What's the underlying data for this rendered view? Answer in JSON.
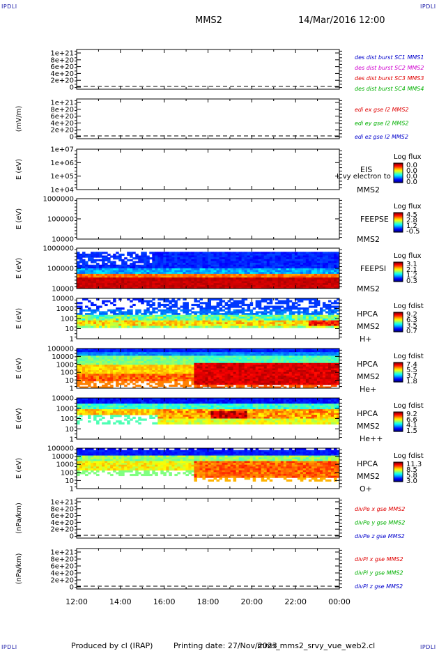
{
  "header": {
    "title": "MMS2",
    "datetime": "14/Mar/2016 12:00",
    "corner_label": "IPDLI"
  },
  "footer": {
    "produced_by": "Produced by cl (IRAP)",
    "printing_date": "Printing date: 27/Nov/2023",
    "filename": "mms_mms2_srvy_vue_web2.cl"
  },
  "chart_data": [
    {
      "type": "line",
      "ylabel": "",
      "yticks": [
        "1e+21",
        "8e+20",
        "6e+20",
        "4e+20",
        "2e+20",
        "0"
      ],
      "series": [
        {
          "name": "des dist burst SC1 MMS1",
          "color": "#0000cc"
        },
        {
          "name": "des dist burst SC2 MMS2",
          "color": "#d000d0"
        },
        {
          "name": "des dist burst SC3 MMS3",
          "color": "#e00000"
        },
        {
          "name": "des dist burst SC4 MMS4",
          "color": "#00b000"
        }
      ]
    },
    {
      "type": "line",
      "ylabel": "(mV/m)",
      "yticks": [
        "1e+21",
        "8e+20",
        "6e+20",
        "4e+20",
        "2e+20",
        "0"
      ],
      "series": [
        {
          "name": "edi ex gse l2 MMS2",
          "color": "#e00000"
        },
        {
          "name": "edi ey gse l2 MMS2",
          "color": "#00b000"
        },
        {
          "name": "edi ez gse l2 MMS2",
          "color": "#0000cc"
        }
      ]
    },
    {
      "type": "heatmap",
      "ylabel": "E (eV)",
      "yticks": [
        "1e+07",
        "1e+06",
        "1e+05",
        "1e+04"
      ],
      "labels": [
        "EIS",
        "MMS2"
      ],
      "overlay": "L vy electron to",
      "colorbar": {
        "title": "Log flux",
        "ticks": [
          "0.0",
          "0.0",
          "0.0",
          "0.0"
        ]
      }
    },
    {
      "type": "heatmap",
      "ylabel": "E (eV)",
      "yticks": [
        "1000000",
        "100000",
        "10000"
      ],
      "labels": [
        "FEEPSE",
        "MMS2"
      ],
      "colorbar": {
        "title": "Log flux",
        "ticks": [
          "4.5",
          "2.8",
          "1.2",
          "-0.5"
        ]
      }
    },
    {
      "type": "heatmap",
      "ylabel": "E (eV)",
      "yticks": [
        "1000000",
        "100000",
        "10000"
      ],
      "labels": [
        "FEEPSI",
        "MMS2"
      ],
      "colorbar": {
        "title": "Log flux",
        "ticks": [
          "3.1",
          "2.1",
          "1.2",
          "0.3"
        ]
      }
    },
    {
      "type": "heatmap",
      "ylabel": "E (eV)",
      "yticks": [
        "10000",
        "1000",
        "100",
        "10",
        "1"
      ],
      "labels": [
        "HPCA",
        "MMS2",
        "H+"
      ],
      "colorbar": {
        "title": "Log fdist",
        "ticks": [
          "9.2",
          "6.3",
          "3.5",
          "0.7"
        ]
      }
    },
    {
      "type": "heatmap",
      "ylabel": "E (eV)",
      "yticks": [
        "100000",
        "10000",
        "1000",
        "100",
        "10",
        "1"
      ],
      "labels": [
        "HPCA",
        "MMS2",
        "He+"
      ],
      "colorbar": {
        "title": "Log fdist",
        "ticks": [
          "7.4",
          "5.5",
          "3.7",
          "1.8"
        ]
      }
    },
    {
      "type": "heatmap",
      "ylabel": "E (eV)",
      "yticks": [
        "10000",
        "1000",
        "100",
        "10",
        "1"
      ],
      "labels": [
        "HPCA",
        "MMS2",
        "He++"
      ],
      "colorbar": {
        "title": "Log fdist",
        "ticks": [
          "9.2",
          "6.6",
          "4.1",
          "1.5"
        ]
      }
    },
    {
      "type": "heatmap",
      "ylabel": "E (eV)",
      "yticks": [
        "100000",
        "10000",
        "1000",
        "100",
        "10",
        "1"
      ],
      "labels": [
        "HPCA",
        "MMS2",
        "O+"
      ],
      "colorbar": {
        "title": "Log fdist",
        "ticks": [
          "11.3",
          "8.5",
          "5.8",
          "3.0"
        ]
      }
    },
    {
      "type": "line",
      "ylabel": "(nPa/km)",
      "yticks": [
        "1e+21",
        "8e+20",
        "6e+20",
        "4e+20",
        "2e+20",
        "0"
      ],
      "series": [
        {
          "name": "divPe x gse MMS2",
          "color": "#e00000"
        },
        {
          "name": "divPe y gse MMS2",
          "color": "#00b000"
        },
        {
          "name": "divPe z gse MMS2",
          "color": "#0000cc"
        }
      ]
    },
    {
      "type": "line",
      "ylabel": "(nPa/km)",
      "yticks": [
        "1e+21",
        "8e+20",
        "6e+20",
        "4e+20",
        "2e+20",
        "0"
      ],
      "series": [
        {
          "name": "divPi x gse MMS2",
          "color": "#e00000"
        },
        {
          "name": "divPi y gse MMS2",
          "color": "#00b000"
        },
        {
          "name": "divPi z gse MMS2",
          "color": "#0000cc"
        }
      ]
    }
  ],
  "xaxis": {
    "ticks": [
      "12:00",
      "14:00",
      "16:00",
      "18:00",
      "20:00",
      "22:00",
      "00:00"
    ]
  }
}
